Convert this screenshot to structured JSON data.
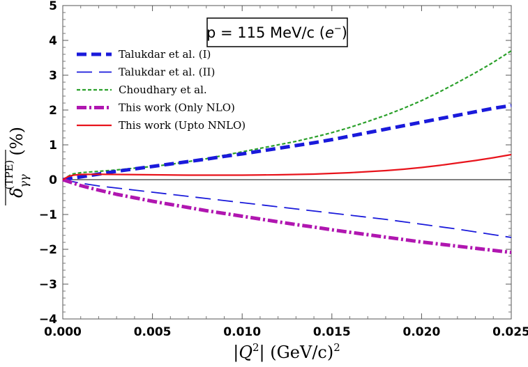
{
  "chart_data": {
    "type": "line",
    "title": "p = 115 MeV/c (e⁻)",
    "title_parts": {
      "prefix": "p = 115 MeV/c (",
      "particle": "e",
      "charge": "−",
      "suffix": ")"
    },
    "xlabel": "|Q²| (GeV/c)²",
    "xlabel_parts": {
      "open": "|",
      "var": "Q",
      "power": "2",
      "close": "| (GeV/c)",
      "unit_power": "2"
    },
    "ylabel": "δ̅ γγ (TPE) (%)",
    "ylabel_parts": {
      "symbol": "δ",
      "sub": "γγ",
      "sup": "(TPE)",
      "unit": "(%)"
    },
    "xlim": [
      0,
      0.025
    ],
    "ylim": [
      -4,
      5
    ],
    "xticks": [
      0,
      0.005,
      0.01,
      0.015,
      0.02,
      0.025
    ],
    "xtick_labels": [
      "0.000",
      "0.005",
      "0.010",
      "0.015",
      "0.020",
      "0.025"
    ],
    "yticks": [
      -4,
      -3,
      -2,
      -1,
      0,
      1,
      2,
      3,
      4,
      5
    ],
    "ytick_labels": [
      "−4",
      "−3",
      "−2",
      "−1",
      "0",
      "1",
      "2",
      "3",
      "4",
      "5"
    ],
    "legend_position": "upper-left",
    "series": [
      {
        "name": "Talukdar et al. (I)",
        "color": "#1a1adb",
        "style": "thick-dashed",
        "x": [
          0,
          0.001,
          0.002,
          0.003,
          0.004,
          0.005,
          0.006,
          0.007,
          0.008,
          0.009,
          0.01,
          0.011,
          0.012,
          0.013,
          0.014,
          0.015,
          0.016,
          0.017,
          0.018,
          0.019,
          0.02,
          0.021,
          0.022,
          0.023,
          0.024,
          0.025
        ],
        "y": [
          0,
          0.08,
          0.16,
          0.24,
          0.31,
          0.38,
          0.45,
          0.52,
          0.59,
          0.67,
          0.74,
          0.82,
          0.9,
          0.98,
          1.06,
          1.15,
          1.25,
          1.35,
          1.45,
          1.55,
          1.65,
          1.75,
          1.85,
          1.95,
          2.05,
          2.13
        ]
      },
      {
        "name": "Talukdar et al. (II)",
        "color": "#1a1adb",
        "style": "long-dashed",
        "x": [
          0,
          0.001,
          0.002,
          0.003,
          0.004,
          0.005,
          0.006,
          0.007,
          0.008,
          0.009,
          0.01,
          0.011,
          0.012,
          0.013,
          0.014,
          0.015,
          0.016,
          0.017,
          0.018,
          0.019,
          0.02,
          0.021,
          0.022,
          0.023,
          0.024,
          0.025
        ],
        "y": [
          0,
          -0.1,
          -0.18,
          -0.24,
          -0.3,
          -0.36,
          -0.42,
          -0.48,
          -0.54,
          -0.6,
          -0.66,
          -0.72,
          -0.78,
          -0.84,
          -0.9,
          -0.96,
          -1.02,
          -1.08,
          -1.14,
          -1.21,
          -1.28,
          -1.35,
          -1.42,
          -1.5,
          -1.58,
          -1.66
        ]
      },
      {
        "name": "Choudhary et al.",
        "color": "#2aa02a",
        "style": "short-dashed",
        "x": [
          0,
          0.0005,
          0.001,
          0.002,
          0.003,
          0.004,
          0.005,
          0.006,
          0.007,
          0.008,
          0.009,
          0.01,
          0.011,
          0.012,
          0.013,
          0.014,
          0.015,
          0.016,
          0.017,
          0.018,
          0.019,
          0.02,
          0.021,
          0.022,
          0.023,
          0.024,
          0.025
        ],
        "y": [
          0,
          0.16,
          0.2,
          0.24,
          0.28,
          0.33,
          0.38,
          0.44,
          0.52,
          0.6,
          0.7,
          0.8,
          0.9,
          1.0,
          1.1,
          1.22,
          1.35,
          1.5,
          1.67,
          1.85,
          2.05,
          2.27,
          2.52,
          2.79,
          3.07,
          3.37,
          3.7
        ]
      },
      {
        "name": "This work (Only NLO)",
        "color": "#b016b0",
        "style": "thick-dash-dot",
        "x": [
          0,
          0.001,
          0.002,
          0.003,
          0.004,
          0.005,
          0.006,
          0.007,
          0.008,
          0.009,
          0.01,
          0.011,
          0.012,
          0.013,
          0.014,
          0.015,
          0.016,
          0.017,
          0.018,
          0.019,
          0.02,
          0.021,
          0.022,
          0.023,
          0.024,
          0.025
        ],
        "y": [
          0,
          -0.17,
          -0.3,
          -0.42,
          -0.52,
          -0.62,
          -0.71,
          -0.8,
          -0.89,
          -0.97,
          -1.05,
          -1.13,
          -1.21,
          -1.29,
          -1.36,
          -1.44,
          -1.51,
          -1.58,
          -1.65,
          -1.72,
          -1.79,
          -1.85,
          -1.91,
          -1.97,
          -2.03,
          -2.09
        ]
      },
      {
        "name": "This work (Upto NNLO)",
        "color": "#e8141c",
        "style": "solid",
        "x": [
          0,
          0.0003,
          0.0006,
          0.001,
          0.002,
          0.003,
          0.004,
          0.005,
          0.006,
          0.007,
          0.008,
          0.009,
          0.01,
          0.011,
          0.012,
          0.013,
          0.014,
          0.015,
          0.016,
          0.017,
          0.018,
          0.019,
          0.02,
          0.021,
          0.022,
          0.023,
          0.024,
          0.025
        ],
        "y": [
          0,
          0.09,
          0.13,
          0.15,
          0.155,
          0.15,
          0.145,
          0.14,
          0.135,
          0.13,
          0.13,
          0.13,
          0.13,
          0.135,
          0.14,
          0.15,
          0.16,
          0.18,
          0.2,
          0.23,
          0.26,
          0.3,
          0.35,
          0.41,
          0.48,
          0.55,
          0.63,
          0.72
        ]
      }
    ]
  }
}
